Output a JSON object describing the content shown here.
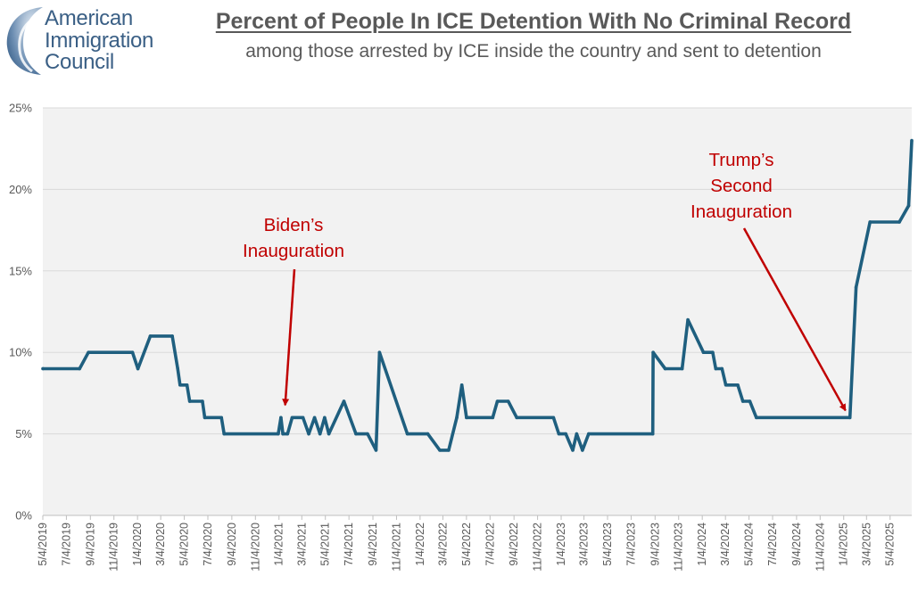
{
  "header": {
    "logo_lines": [
      "American",
      "Immigration",
      "Council"
    ],
    "title": "Percent of People In ICE Detention With No Criminal Record",
    "subtitle": "among those arrested by ICE inside the country and sent to detention"
  },
  "colors": {
    "line": "#1f5f7f",
    "annotation": "#c00000",
    "plot_background": "#f2f2f2",
    "grid": "#d9d9d9",
    "text": "#595959",
    "logo": "#3a5f85"
  },
  "chart_data": {
    "type": "line",
    "title": "Percent of People In ICE Detention With No Criminal Record",
    "subtitle": "among those arrested by ICE inside the country and sent to detention",
    "xlabel": "",
    "ylabel": "",
    "x_range": [
      "2019-05-04",
      "2025-06-29"
    ],
    "ylim": [
      0,
      25
    ],
    "y_ticks": [
      0,
      5,
      10,
      15,
      20,
      25
    ],
    "y_tick_labels": [
      "0%",
      "5%",
      "10%",
      "15%",
      "20%",
      "25%"
    ],
    "x_ticks": [
      "2019-05-04",
      "2019-07-04",
      "2019-09-04",
      "2019-11-04",
      "2020-01-04",
      "2020-03-04",
      "2020-05-04",
      "2020-07-04",
      "2020-09-04",
      "2020-11-04",
      "2021-01-04",
      "2021-03-04",
      "2021-05-04",
      "2021-07-04",
      "2021-09-04",
      "2021-11-04",
      "2022-01-04",
      "2022-03-04",
      "2022-05-04",
      "2022-07-04",
      "2022-09-04",
      "2022-11-04",
      "2023-01-04",
      "2023-03-04",
      "2023-05-04",
      "2023-07-04",
      "2023-09-04",
      "2023-11-04",
      "2024-01-04",
      "2024-03-04",
      "2024-05-04",
      "2024-07-04",
      "2024-09-04",
      "2024-11-04",
      "2025-01-04",
      "2025-03-04",
      "2025-05-04"
    ],
    "x_tick_labels": [
      "5/4/2019",
      "7/4/2019",
      "9/4/2019",
      "11/4/2019",
      "1/4/2020",
      "3/4/2020",
      "5/4/2020",
      "7/4/2020",
      "9/4/2020",
      "11/4/2020",
      "1/4/2021",
      "3/4/2021",
      "5/4/2021",
      "7/4/2021",
      "9/4/2021",
      "11/4/2021",
      "1/4/2022",
      "3/4/2022",
      "5/4/2022",
      "7/4/2022",
      "9/4/2022",
      "11/4/2022",
      "1/4/2023",
      "3/4/2023",
      "5/4/2023",
      "7/4/2023",
      "9/4/2023",
      "11/4/2023",
      "1/4/2024",
      "3/4/2024",
      "5/4/2024",
      "7/4/2024",
      "9/4/2024",
      "11/4/2024",
      "1/4/2025",
      "3/4/2025",
      "5/4/2025"
    ],
    "grid": true,
    "legend": "none",
    "series": [
      {
        "points": [
          [
            "2019-05-04",
            9
          ],
          [
            "2019-08-07",
            9
          ],
          [
            "2019-08-30",
            10
          ],
          [
            "2019-12-22",
            10
          ],
          [
            "2020-01-05",
            9
          ],
          [
            "2020-02-06",
            11
          ],
          [
            "2020-04-03",
            11
          ],
          [
            "2020-04-17",
            9
          ],
          [
            "2020-04-23",
            8
          ],
          [
            "2020-05-11",
            8
          ],
          [
            "2020-05-18",
            7
          ],
          [
            "2020-06-20",
            7
          ],
          [
            "2020-06-26",
            6
          ],
          [
            "2020-08-08",
            6
          ],
          [
            "2020-08-15",
            5
          ],
          [
            "2021-01-02",
            5
          ],
          [
            "2021-01-09",
            6
          ],
          [
            "2021-01-14",
            5
          ],
          [
            "2021-01-26",
            5
          ],
          [
            "2021-02-07",
            6
          ],
          [
            "2021-03-07",
            6
          ],
          [
            "2021-03-22",
            5
          ],
          [
            "2021-04-06",
            6
          ],
          [
            "2021-04-20",
            5
          ],
          [
            "2021-05-02",
            6
          ],
          [
            "2021-05-13",
            5
          ],
          [
            "2021-06-21",
            7
          ],
          [
            "2021-07-22",
            5
          ],
          [
            "2021-08-21",
            5
          ],
          [
            "2021-09-12",
            4
          ],
          [
            "2021-09-21",
            10
          ],
          [
            "2021-12-02",
            5
          ],
          [
            "2022-01-24",
            5
          ],
          [
            "2022-02-24",
            4
          ],
          [
            "2022-03-19",
            4
          ],
          [
            "2022-04-09",
            6
          ],
          [
            "2022-04-22",
            8
          ],
          [
            "2022-05-04",
            6
          ],
          [
            "2022-07-11",
            6
          ],
          [
            "2022-07-23",
            7
          ],
          [
            "2022-08-20",
            7
          ],
          [
            "2022-09-11",
            6
          ],
          [
            "2022-12-15",
            6
          ],
          [
            "2022-12-29",
            5
          ],
          [
            "2023-01-16",
            5
          ],
          [
            "2023-02-03",
            4
          ],
          [
            "2023-02-13",
            5
          ],
          [
            "2023-02-28",
            4
          ],
          [
            "2023-03-16",
            5
          ],
          [
            "2023-08-29",
            5
          ],
          [
            "2023-08-30",
            10
          ],
          [
            "2023-09-30",
            9
          ],
          [
            "2023-11-13",
            9
          ],
          [
            "2023-11-28",
            12
          ],
          [
            "2024-01-07",
            10
          ],
          [
            "2024-01-31",
            10
          ],
          [
            "2024-02-08",
            9
          ],
          [
            "2024-02-24",
            9
          ],
          [
            "2024-03-05",
            8
          ],
          [
            "2024-04-05",
            8
          ],
          [
            "2024-04-18",
            7
          ],
          [
            "2024-05-06",
            7
          ],
          [
            "2024-05-23",
            6
          ],
          [
            "2025-01-20",
            6
          ],
          [
            "2025-02-05",
            14
          ],
          [
            "2025-03-13",
            18
          ],
          [
            "2025-05-28",
            18
          ],
          [
            "2025-06-21",
            19
          ],
          [
            "2025-07-05",
            23
          ]
        ]
      }
    ],
    "annotations": [
      {
        "lines": [
          "Biden’s",
          "Inauguration"
        ],
        "date": "2021-01-20",
        "value": 6
      },
      {
        "lines": [
          "Trump’s",
          "Second",
          "Inauguration"
        ],
        "date": "2025-01-20",
        "value": 6
      }
    ]
  }
}
